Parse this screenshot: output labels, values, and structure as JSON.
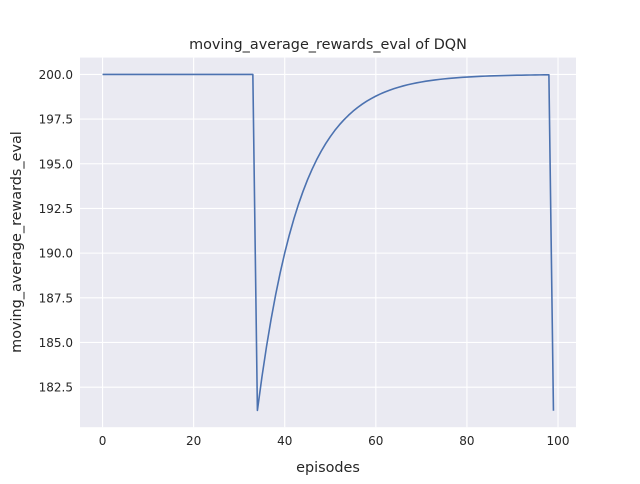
{
  "chart_data": {
    "type": "line",
    "title": "moving_average_rewards_eval of DQN",
    "xlabel": "episodes",
    "ylabel": "moving_average_rewards_eval",
    "xlim": [
      -4.95,
      103.95
    ],
    "ylim": [
      180.26,
      200.94
    ],
    "xticks": [
      0,
      20,
      40,
      60,
      80,
      100
    ],
    "xtick_labels": [
      "0",
      "20",
      "40",
      "60",
      "80",
      "100"
    ],
    "yticks": [
      182.5,
      185.0,
      187.5,
      190.0,
      192.5,
      195.0,
      197.5,
      200.0
    ],
    "ytick_labels": [
      "182.5",
      "185.0",
      "187.5",
      "190.0",
      "192.5",
      "195.0",
      "197.5",
      "200.0"
    ],
    "grid": true,
    "colors": {
      "background": "#eaeaf2",
      "grid": "#ffffff",
      "line": "#4c72b0"
    },
    "series": [
      {
        "x_start": 0,
        "values": [
          200,
          200,
          200,
          200,
          200,
          200,
          200,
          200,
          200,
          200,
          200,
          200,
          200,
          200,
          200,
          200,
          200,
          200,
          200,
          200,
          200,
          200,
          200,
          200,
          200,
          200,
          200,
          200,
          200,
          200,
          200,
          200,
          200,
          200,
          181.2,
          183.08,
          184.772,
          186.295,
          187.665,
          188.899,
          190.009,
          191.008,
          191.907,
          192.717,
          193.445,
          194.1,
          194.69,
          195.221,
          195.699,
          196.129,
          196.516,
          196.865,
          197.178,
          197.46,
          197.714,
          197.943,
          198.149,
          198.334,
          198.5,
          198.65,
          198.785,
          198.907,
          199.016,
          199.115,
          199.203,
          199.283,
          199.354,
          199.419,
          199.477,
          199.529,
          199.576,
          199.619,
          199.657,
          199.691,
          199.722,
          199.75,
          199.775,
          199.797,
          199.818,
          199.836,
          199.852,
          199.867,
          199.88,
          199.892,
          199.903,
          199.913,
          199.922,
          199.929,
          199.936,
          199.943,
          199.949,
          199.954,
          199.958,
          199.962,
          199.966,
          199.97,
          199.973,
          199.975,
          199.978,
          181.18
        ]
      }
    ]
  }
}
